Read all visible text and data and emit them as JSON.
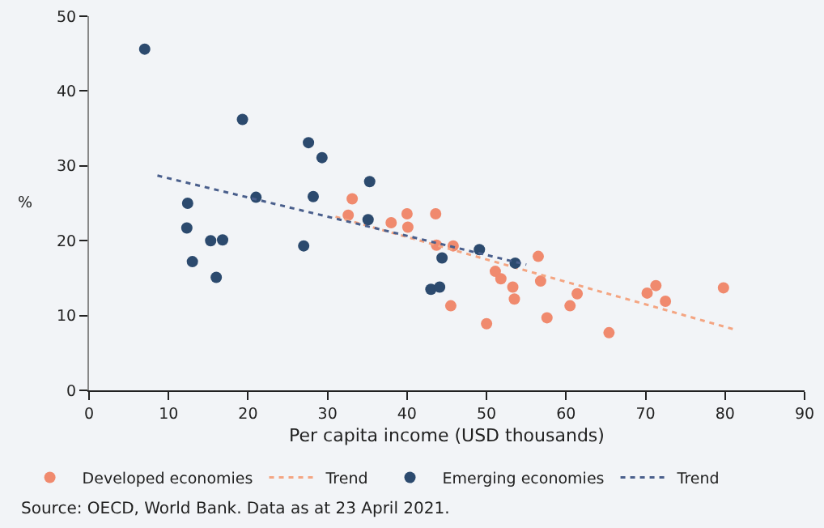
{
  "chart_data": {
    "type": "scatter",
    "xlabel": "Per capita income (USD thousands)",
    "ylabel": "%",
    "xlim": [
      0,
      90
    ],
    "xticks": [
      0,
      10,
      20,
      30,
      40,
      50,
      60,
      70,
      80,
      90
    ],
    "ylim": [
      0,
      50
    ],
    "yticks": [
      0,
      10,
      20,
      30,
      40,
      50
    ],
    "grid": false,
    "legend": "bottom",
    "series": [
      {
        "name": "Developed economies",
        "marker": "circle",
        "color": "#f08a6e",
        "x": [
          33.1,
          32.6,
          40.0,
          43.6,
          38.0,
          40.1,
          43.7,
          45.8,
          51.1,
          51.8,
          53.3,
          53.5,
          45.5,
          50.0,
          56.5,
          56.8,
          57.6,
          61.4,
          60.5,
          65.4,
          70.2,
          71.3,
          72.5,
          79.8
        ],
        "values": [
          25.6,
          23.4,
          23.6,
          23.6,
          22.4,
          21.8,
          19.4,
          19.3,
          15.9,
          14.9,
          13.8,
          12.2,
          11.3,
          8.9,
          17.9,
          14.6,
          9.7,
          12.9,
          11.3,
          7.7,
          13.0,
          14.0,
          11.9,
          13.7
        ]
      },
      {
        "name": "Trend",
        "type": "line",
        "line_style": "dotted",
        "color": "#f4a582",
        "x": [
          31,
          81.3
        ],
        "values": [
          23.2,
          8.1
        ]
      },
      {
        "name": "Emerging economies",
        "marker": "circle",
        "color": "#2c4a6e",
        "x": [
          7.0,
          19.3,
          27.6,
          29.3,
          12.4,
          21.0,
          28.2,
          12.3,
          15.3,
          16.8,
          13.0,
          16.0,
          27.0,
          35.3,
          35.1,
          44.4,
          43.0,
          44.1,
          49.1,
          53.6
        ],
        "values": [
          45.6,
          36.2,
          33.1,
          31.1,
          25.0,
          25.8,
          25.9,
          21.7,
          20.0,
          20.1,
          17.2,
          15.1,
          19.3,
          27.9,
          22.8,
          17.7,
          13.5,
          13.8,
          18.8,
          17.0
        ]
      },
      {
        "name": "Trend",
        "type": "line",
        "line_style": "dotted",
        "color": "#4a5f8c",
        "x": [
          8.6,
          55.0
        ],
        "values": [
          28.7,
          16.8
        ]
      }
    ],
    "annotations": [
      "Source: OECD, World Bank. Data as at 23 April 2021."
    ]
  }
}
